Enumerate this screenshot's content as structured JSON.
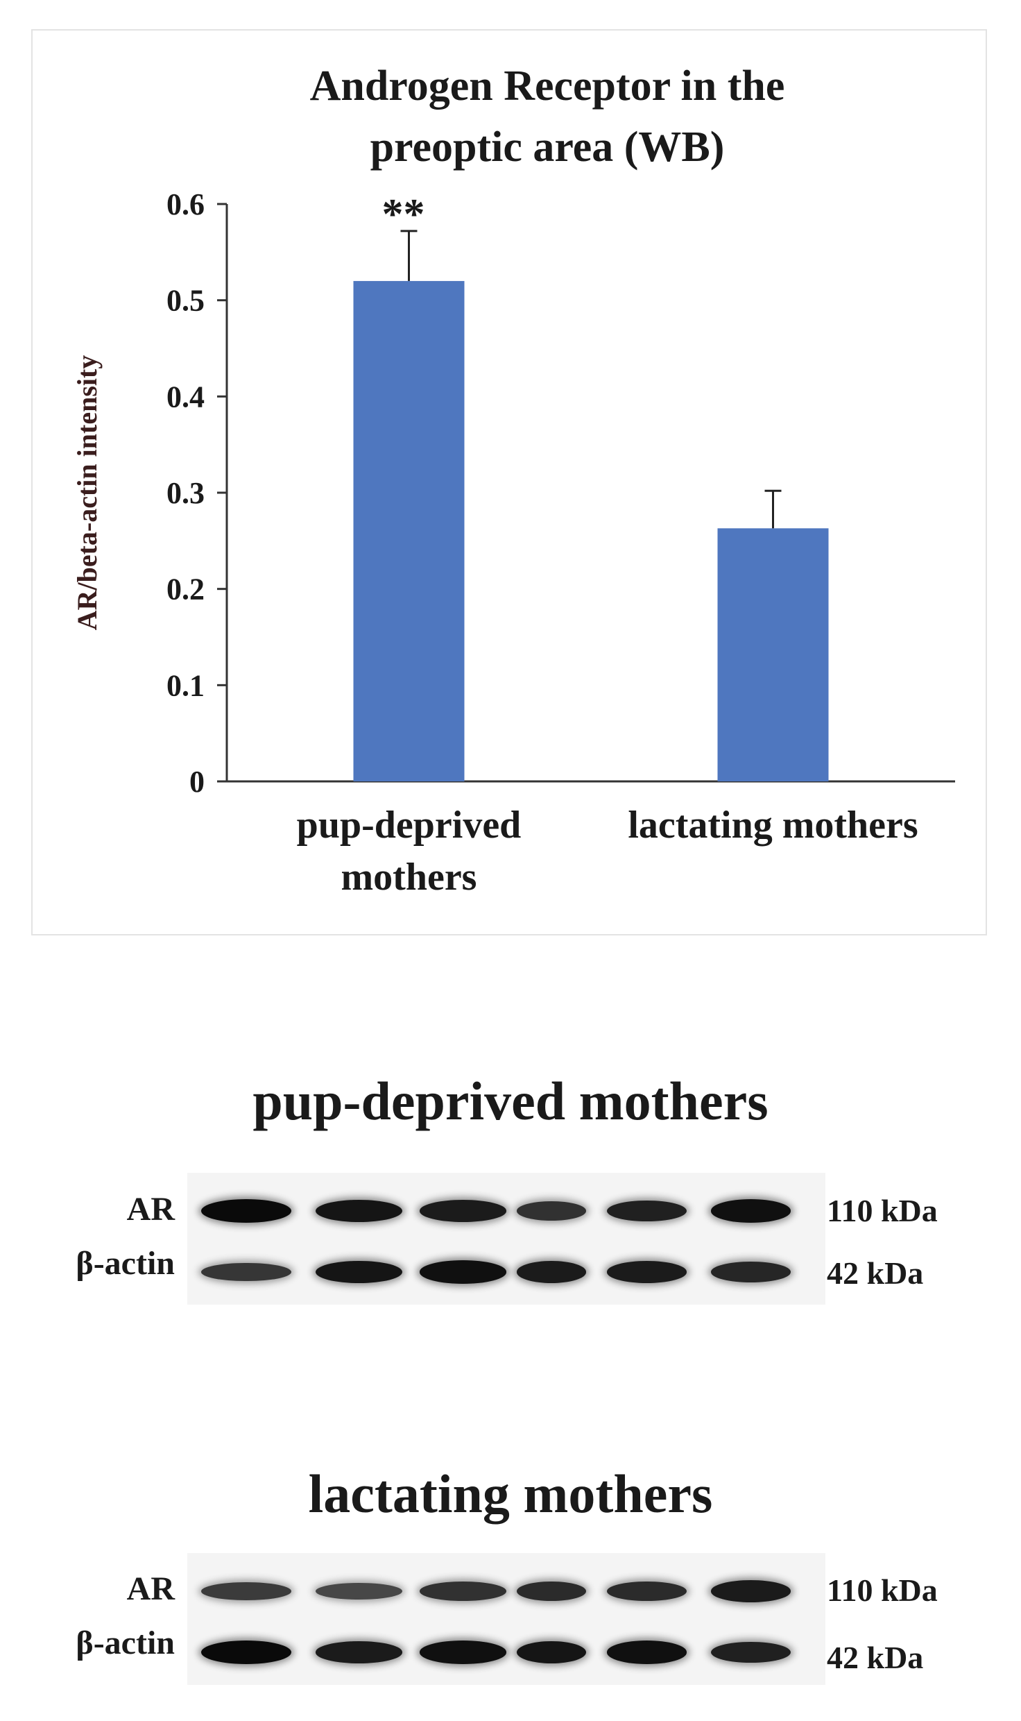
{
  "chart_data": {
    "type": "bar",
    "title": "Androgen Receptor in the preoptic area (WB)",
    "title_lines": [
      "Androgen Receptor in the",
      "preoptic area (WB)"
    ],
    "ylabel": "AR/beta-actin intensity",
    "xlabel": "",
    "ylim": [
      0,
      0.6
    ],
    "yticks": [
      "0",
      "0.1",
      "0.2",
      "0.3",
      "0.4",
      "0.5",
      "0.6"
    ],
    "categories": [
      "pup-deprived mothers",
      "lactating mothers"
    ],
    "category_lines": [
      [
        "pup-deprived",
        "mothers"
      ],
      [
        "lactating mothers"
      ]
    ],
    "values": [
      0.52,
      0.263
    ],
    "error_upper": [
      0.052,
      0.039
    ],
    "annotations": [
      "**",
      ""
    ],
    "bar_color": "#4f77bf",
    "grid": false,
    "legend": "none"
  },
  "blots": [
    {
      "title": "pup-deprived mothers",
      "rows": [
        {
          "protein": "AR",
          "kda": "110 kDa",
          "intensity": [
            1.0,
            0.9,
            0.85,
            0.65,
            0.8,
            0.95
          ]
        },
        {
          "protein": "β-actin",
          "kda": "42 kDa",
          "intensity": [
            0.6,
            0.9,
            0.95,
            0.85,
            0.85,
            0.75
          ]
        }
      ]
    },
    {
      "title": "lactating mothers",
      "rows": [
        {
          "protein": "AR",
          "kda": "110 kDa",
          "intensity": [
            0.55,
            0.45,
            0.65,
            0.7,
            0.7,
            0.85
          ]
        },
        {
          "protein": "β-actin",
          "kda": "42 kDa",
          "intensity": [
            1.0,
            0.85,
            0.95,
            0.9,
            0.95,
            0.8
          ]
        }
      ]
    }
  ]
}
